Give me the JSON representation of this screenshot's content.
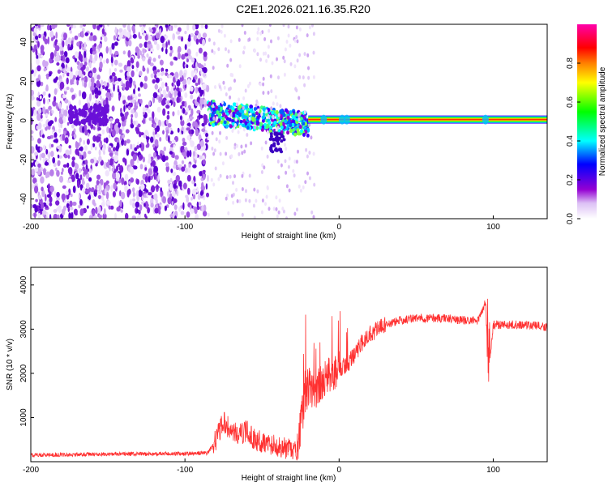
{
  "title": "C2E1.2026.021.16.35.R20",
  "chart_data": [
    {
      "type": "heatmap",
      "xlabel": "Height of straight line (km)",
      "ylabel": "Frequency (Hz)",
      "xlim": [
        -200,
        135
      ],
      "ylim": [
        -50,
        49
      ],
      "xticks": [
        -200,
        -100,
        0,
        100
      ],
      "yticks": [
        -40,
        -20,
        0,
        20,
        40
      ],
      "colorbar": {
        "label": "Normalized spectral amplitude",
        "range": [
          0,
          1
        ],
        "ticks": [
          0.0,
          0.2,
          0.4,
          0.6,
          0.8
        ],
        "colors": [
          "#ffffff",
          "#9400d3",
          "#0000ff",
          "#00ffff",
          "#00ff00",
          "#ffff00",
          "#ff7f00",
          "#ff0000",
          "#ff00ff"
        ]
      },
      "regions": [
        {
          "name": "noise",
          "x": [
            -200,
            -85
          ],
          "amplitude": 0.1
        },
        {
          "name": "onset-scatter",
          "x": [
            -85,
            -20
          ],
          "freq": [
            -15,
            10
          ],
          "amplitude": 0.4
        },
        {
          "name": "carrier",
          "x": [
            -20,
            135
          ],
          "freq": 0.5,
          "amplitude": 1.0
        }
      ]
    },
    {
      "type": "line",
      "xlabel": "Height of straight line (km)",
      "ylabel": "SNR (10 * v/v)",
      "xlim": [
        -200,
        135
      ],
      "ylim": [
        0,
        4400
      ],
      "xticks": [
        -200,
        -100,
        0,
        100
      ],
      "yticks": [
        1000,
        2000,
        3000,
        4000
      ],
      "series": [
        {
          "name": "SNR",
          "color": "#ff3030",
          "x": [
            -200,
            -150,
            -100,
            -85,
            -80,
            -75,
            -70,
            -65,
            -60,
            -55,
            -50,
            -45,
            -40,
            -35,
            -30,
            -27,
            -25,
            -22,
            -20,
            -15,
            -10,
            -5,
            0,
            5,
            10,
            15,
            20,
            30,
            40,
            50,
            60,
            70,
            80,
            90,
            95,
            97,
            100,
            110,
            120,
            135
          ],
          "y": [
            150,
            170,
            180,
            200,
            500,
            900,
            700,
            600,
            700,
            500,
            450,
            400,
            350,
            300,
            250,
            200,
            800,
            1500,
            1700,
            1600,
            1800,
            2000,
            2100,
            2200,
            2400,
            2700,
            2900,
            3100,
            3200,
            3250,
            3250,
            3250,
            3200,
            3200,
            3600,
            2000,
            3100,
            3100,
            3100,
            3050
          ]
        }
      ]
    }
  ]
}
